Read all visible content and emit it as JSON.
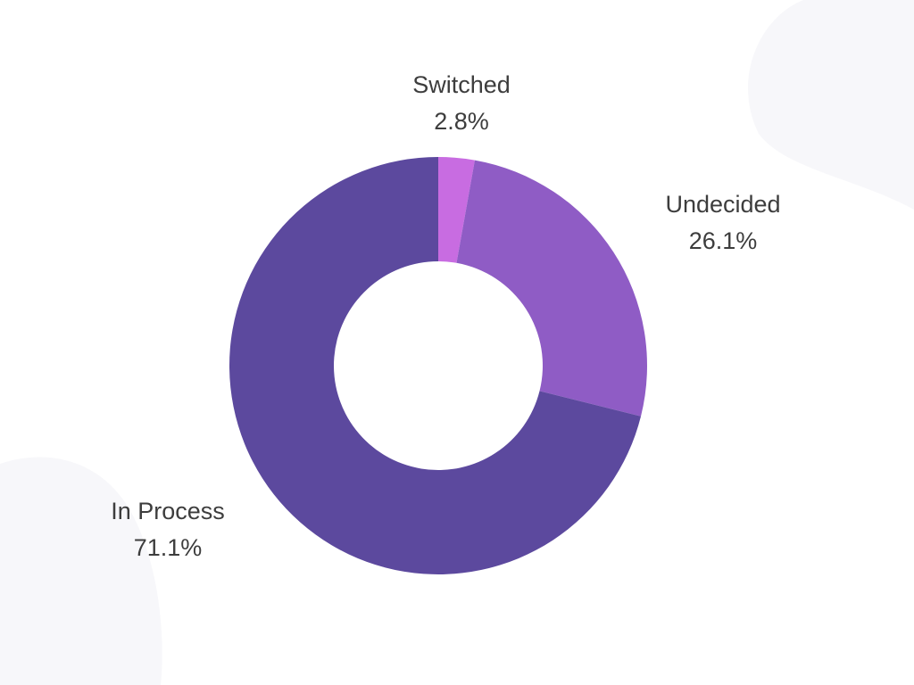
{
  "chart_data": {
    "type": "pie",
    "donut": true,
    "title": "",
    "slices": [
      {
        "label": "Switched",
        "value": 2.8,
        "display": "2.8%",
        "color": "#c86ce1"
      },
      {
        "label": "Undecided",
        "value": 26.1,
        "display": "26.1%",
        "color": "#8f5cc5"
      },
      {
        "label": "In Process",
        "value": 71.1,
        "display": "71.1%",
        "color": "#5c499e"
      }
    ],
    "background_color": "#ffffff",
    "decor_color": "#f7f7fa"
  }
}
